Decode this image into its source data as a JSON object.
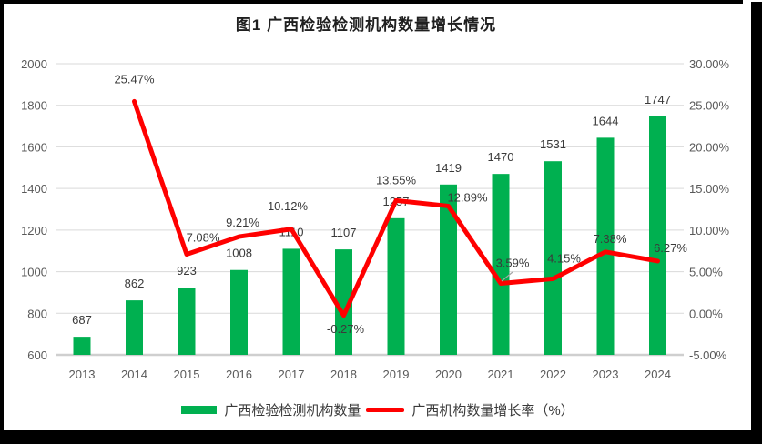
{
  "title": "图1 广西检验检测机构数量增长情况",
  "legend": [
    {
      "label": "广西检验检测机构数量",
      "color": "#00B050"
    },
    {
      "label": "广西机构数量增长率（%）",
      "color": "#FF0000"
    }
  ],
  "chart_data": {
    "type": "bar",
    "combo": "bar+line",
    "title": "图1 广西检验检测机构数量增长情况",
    "categories": [
      "2013",
      "2014",
      "2015",
      "2016",
      "2017",
      "2018",
      "2019",
      "2020",
      "2021",
      "2022",
      "2023",
      "2024"
    ],
    "series": [
      {
        "name": "广西检验检测机构数量",
        "type": "bar",
        "axis": "left",
        "color": "#00B050",
        "values": [
          687,
          862,
          923,
          1008,
          1110,
          1107,
          1257,
          1419,
          1470,
          1531,
          1644,
          1747
        ]
      },
      {
        "name": "广西机构数量增长率（%）",
        "type": "line",
        "axis": "right",
        "color": "#FF0000",
        "values": [
          null,
          25.47,
          7.08,
          9.21,
          10.12,
          -0.27,
          13.55,
          12.89,
          3.59,
          4.15,
          7.38,
          6.27
        ],
        "point_labels": [
          null,
          "25.47%",
          "7.08%",
          "9.21%",
          "10.12%",
          "-0.27%",
          "13.55%",
          "12.89%",
          "3.59%",
          "4.15%",
          "7.38%",
          "6.27%"
        ]
      }
    ],
    "left_axis": {
      "min": 600,
      "max": 2000,
      "step": 200,
      "ticks": [
        "600",
        "800",
        "1000",
        "1200",
        "1400",
        "1600",
        "1800",
        "2000"
      ]
    },
    "right_axis": {
      "min": -5,
      "max": 30,
      "step": 5,
      "ticks": [
        "-5.00%",
        "0.00%",
        "5.00%",
        "10.00%",
        "15.00%",
        "20.00%",
        "25.00%",
        "30.00%"
      ]
    },
    "grid": true,
    "legend_position": "bottom"
  },
  "colors": {
    "grid": "#D9D9D9",
    "axis_line": "#CFCFCF",
    "axis_text": "#595959",
    "data_label": "#3A3A3A",
    "leader": "#A6A6A6",
    "frame": "#000000",
    "background": "#FFFFFF"
  }
}
